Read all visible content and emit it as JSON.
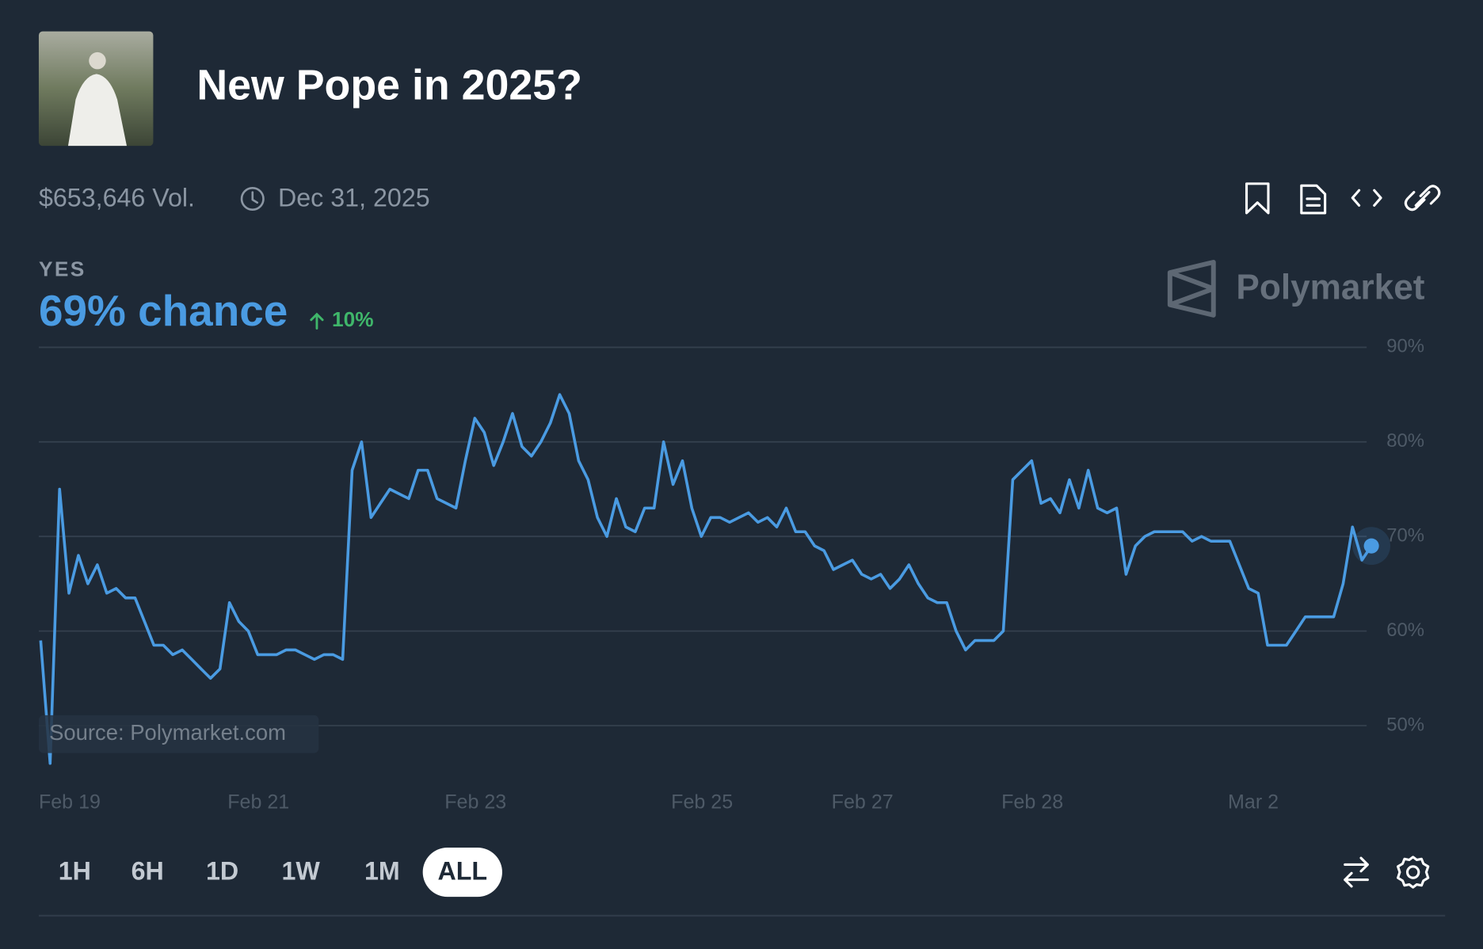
{
  "header": {
    "title": "New Pope in 2025?",
    "volume": "$653,646 Vol.",
    "end_date": "Dec 31, 2025"
  },
  "outcome": {
    "label": "YES",
    "chance": "69% chance",
    "change": "10%"
  },
  "brand": "Polymarket",
  "source": "Source: Polymarket.com",
  "range_buttons": [
    "1H",
    "6H",
    "1D",
    "1W",
    "1M",
    "ALL"
  ],
  "selected_range": "ALL",
  "chart_data": {
    "type": "line",
    "color": "#4a9be2",
    "values": [
      59,
      46,
      75,
      64,
      68,
      65,
      67,
      64,
      64.5,
      63.5,
      63.5,
      61,
      58.5,
      58.5,
      57.5,
      58,
      57,
      56,
      55,
      56,
      63,
      61,
      60,
      57.5,
      57.5,
      57.5,
      58,
      58,
      57.5,
      57,
      57.5,
      57.5,
      57,
      77,
      80,
      72,
      73.5,
      75,
      74.5,
      74,
      77,
      77,
      74,
      73.5,
      73,
      78,
      82.5,
      81,
      77.5,
      80,
      83,
      79.5,
      78.5,
      80,
      82,
      85,
      83,
      78,
      76,
      72,
      70,
      74,
      71,
      70.5,
      73,
      73,
      80,
      75.5,
      78,
      73,
      70,
      72,
      72,
      71.5,
      72,
      72.5,
      71.5,
      72,
      71,
      73,
      70.5,
      70.5,
      69,
      68.5,
      66.5,
      67,
      67.5,
      66,
      65.5,
      66,
      64.5,
      65.5,
      67,
      65,
      63.5,
      63,
      63,
      60,
      58,
      59,
      59,
      59,
      60,
      76,
      77,
      78,
      73.5,
      74,
      72.5,
      76,
      73,
      77,
      73,
      72.5,
      73,
      66,
      69,
      70,
      70.5,
      70.5,
      70.5,
      70.5,
      69.5,
      70,
      69.5,
      69.5,
      69.5,
      67,
      64.5,
      64,
      58.5,
      58.5,
      58.5,
      60,
      61.5,
      61.5,
      61.5,
      61.5,
      65,
      71,
      67.5,
      69
    ],
    "xlim": [
      0,
      141
    ],
    "xticks": [
      {
        "value": 0,
        "label": "Feb 19"
      },
      {
        "value": 20,
        "label": "Feb 21"
      },
      {
        "value": 43,
        "label": "Feb 23"
      },
      {
        "value": 67,
        "label": "Feb 25"
      },
      {
        "value": 84,
        "label": "Feb 27"
      },
      {
        "value": 102,
        "label": "Feb 28"
      },
      {
        "value": 126,
        "label": "Mar 2"
      }
    ],
    "ylim": [
      45,
      90
    ],
    "yticks": [
      {
        "value": 50,
        "label": "50%"
      },
      {
        "value": 60,
        "label": "60%"
      },
      {
        "value": 70,
        "label": "70%"
      },
      {
        "value": 80,
        "label": "80%"
      },
      {
        "value": 90,
        "label": "90%"
      }
    ],
    "grid": true
  }
}
